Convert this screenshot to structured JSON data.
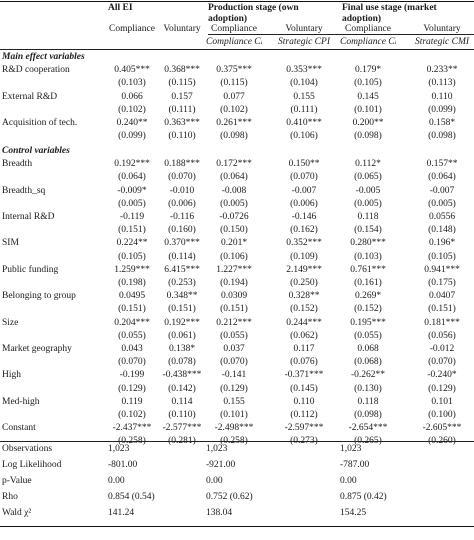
{
  "header": {
    "groups": [
      {
        "label": "All EI"
      },
      {
        "label": "Production stage (own adoption)"
      },
      {
        "label": "Final use stage (market adoption)"
      }
    ],
    "subcols": [
      "Compliance",
      "Voluntary",
      "Compliance",
      "Voluntary",
      "Compliance",
      "Voluntary"
    ],
    "subsubcols": [
      "",
      "",
      "Compliance CPI",
      "Strategic CPI",
      "Compliance CMI",
      "Strategic CMI"
    ]
  },
  "sections": [
    {
      "title": "Main effect variables",
      "rows": [
        {
          "label": "R&D cooperation",
          "coef": [
            "0.405***",
            "0.368***",
            "0.375***",
            "0.353***",
            "0.179*",
            "0.233**"
          ],
          "se": [
            "(0.103)",
            "(0.115)",
            "(0.115)",
            "(0.104)",
            "(0.105)",
            "(0.113)"
          ]
        },
        {
          "label": "External R&D",
          "coef": [
            "0.066",
            "0.157",
            "0.077",
            "0.155",
            "0.145",
            "0.110"
          ],
          "se": [
            "(0.102)",
            "(0.111)",
            "(0.102)",
            "(0.111)",
            "(0.101)",
            "(0.099)"
          ]
        },
        {
          "label": "Acquisition of tech.",
          "coef": [
            "0.240**",
            "0.363***",
            "0.261***",
            "0.410***",
            "0.200**",
            "0.158*"
          ],
          "se": [
            "(0.099)",
            "(0.110)",
            "(0.098)",
            "(0.106)",
            "(0.098)",
            "(0.098)"
          ]
        }
      ]
    },
    {
      "title": "Control variables",
      "rows": [
        {
          "label": "Breadth",
          "coef": [
            "0.192***",
            "0.188***",
            "0.172***",
            "0.150**",
            "0.112*",
            "0.157**"
          ],
          "se": [
            "(0.064)",
            "(0.070)",
            "(0.064)",
            "(0.070)",
            "(0.065)",
            "(0.064)"
          ]
        },
        {
          "label": "Breadth_sq",
          "coef": [
            "-0.009*",
            "-0.010",
            "-0.008",
            "-0.007",
            "-0.005",
            "-0.007"
          ],
          "se": [
            "(0.005)",
            "(0.006)",
            "(0.005)",
            "(0.006)",
            "(0.005)",
            "(0.005)"
          ]
        },
        {
          "label": "Internal R&D",
          "coef": [
            "-0.119",
            "-0.116",
            "-0.0726",
            "-0.146",
            "0.118",
            "0.0556"
          ],
          "se": [
            "(0.151)",
            "(0.160)",
            "(0.150)",
            "(0.162)",
            "(0.154)",
            "(0.148)"
          ]
        },
        {
          "label": "SIM",
          "coef": [
            "0.224**",
            "0.370***",
            "0.201*",
            "0.352***",
            "0.280***",
            "0.196*"
          ],
          "se": [
            "(0.105)",
            "(0.114)",
            "(0.106)",
            "(0.109)",
            "(0.103)",
            "(0.105)"
          ]
        },
        {
          "label": "Public funding",
          "coef": [
            "1.259***",
            "6.415***",
            "1.227***",
            "2.149***",
            "0.761***",
            "0.941***"
          ],
          "se": [
            "(0.198)",
            "(0.253)",
            "(0.194)",
            "(0.250)",
            "(0.161)",
            "(0.175)"
          ]
        },
        {
          "label": "Belonging to group",
          "coef": [
            "0.0495",
            "0.348**",
            "0.0309",
            "0.328**",
            "0.269*",
            "0.0407"
          ],
          "se": [
            "(0.151)",
            "(0.151)",
            "(0.151)",
            "(0.152)",
            "(0.152)",
            "(0.151)"
          ]
        },
        {
          "label": "Size",
          "coef": [
            "0.204***",
            "0.192***",
            "0.212***",
            "0.244***",
            "0.195***",
            "0.181***"
          ],
          "se": [
            "(0.055)",
            "(0.061)",
            "(0.055)",
            "(0.062)",
            "(0.055)",
            "(0.056)"
          ]
        },
        {
          "label": "Market geography",
          "coef": [
            "0.043",
            "0.138*",
            "0.037",
            "0.117",
            "0.068",
            "-0.012"
          ],
          "se": [
            "(0.070)",
            "(0.078)",
            "(0.070)",
            "(0.076)",
            "(0.068)",
            "(0.070)"
          ]
        },
        {
          "label": "High",
          "coef": [
            "-0.199",
            "-0.438***",
            "-0.141",
            "-0.371***",
            "-0.262**",
            "-0.240*"
          ],
          "se": [
            "(0.129)",
            "(0.142)",
            "(0.129)",
            "(0.145)",
            "(0.130)",
            "(0.129)"
          ]
        },
        {
          "label": "Med-high",
          "coef": [
            "0.119",
            "0.114",
            "0.155",
            "0.110",
            "0.118",
            "0.101"
          ],
          "se": [
            "(0.102)",
            "(0.110)",
            "(0.101)",
            "(0.112)",
            "(0.098)",
            "(0.100)"
          ]
        },
        {
          "label": "Constant",
          "coef": [
            "-2.437***",
            "-2.577***",
            "-2.498***",
            "-2.597***",
            "-2.654***",
            "-2.605***"
          ],
          "se": [
            "(0.258)",
            "(0.281)",
            "(0.258)",
            "(0.273)",
            "(0.265)",
            "(0.260)"
          ]
        }
      ]
    }
  ],
  "stats": [
    {
      "label": "Observations",
      "vals": [
        "1,023",
        "",
        "1,023",
        "",
        "1,023",
        ""
      ]
    },
    {
      "label": "Log Likelihood",
      "vals": [
        "-801.00",
        "",
        "-921.00",
        "",
        "-787.00",
        ""
      ]
    },
    {
      "label": "p-Value",
      "vals": [
        "0.00",
        "",
        "0.00",
        "",
        "0.00",
        ""
      ]
    },
    {
      "label": "Rho",
      "vals": [
        "0.854 (0.54)",
        "",
        "0.752 (0.62)",
        "",
        "0.875 (0.42)",
        ""
      ]
    },
    {
      "label": "Wald χ²",
      "vals": [
        "141.24",
        "",
        "138.04",
        "",
        "154.25",
        ""
      ]
    }
  ]
}
